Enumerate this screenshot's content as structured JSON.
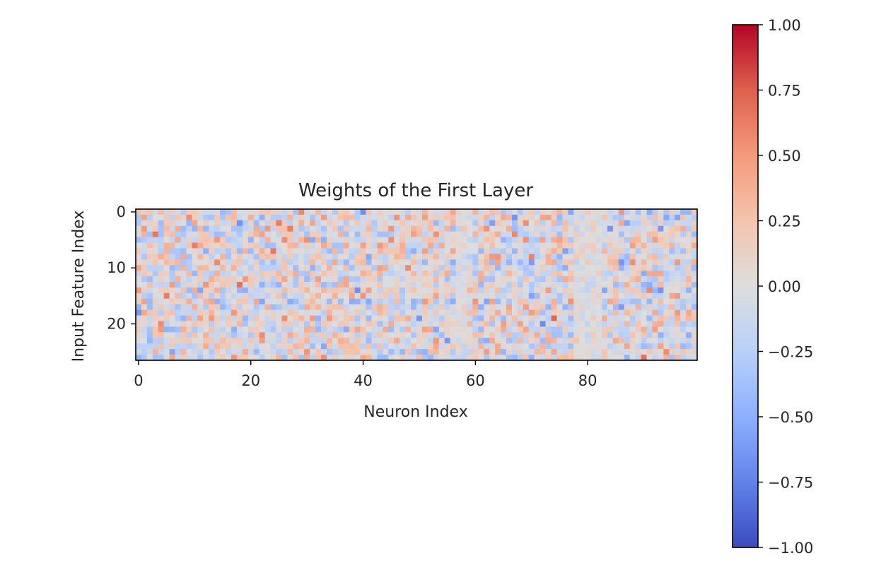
{
  "chart_data": {
    "type": "heatmap",
    "title": "Weights of the First Layer",
    "xlabel": "Neuron Index",
    "ylabel": "Input Feature Index",
    "n_cols": 100,
    "n_rows": 27,
    "xticks": [
      0,
      20,
      40,
      60,
      80
    ],
    "yticks": [
      0,
      10,
      20
    ],
    "colormap": "coolwarm",
    "vmin": -1.0,
    "vmax": 1.0,
    "colorbar_ticks": [
      1.0,
      0.75,
      0.5,
      0.25,
      0.0,
      -0.25,
      -0.5,
      -0.75,
      -1.0
    ],
    "colorbar_tick_labels": [
      "1.00",
      "0.75",
      "0.50",
      "0.25",
      "0.00",
      "−0.25",
      "−0.50",
      "−0.75",
      "−1.00"
    ],
    "values_note": "",
    "legend": "colorbar-right",
    "grid": false
  }
}
